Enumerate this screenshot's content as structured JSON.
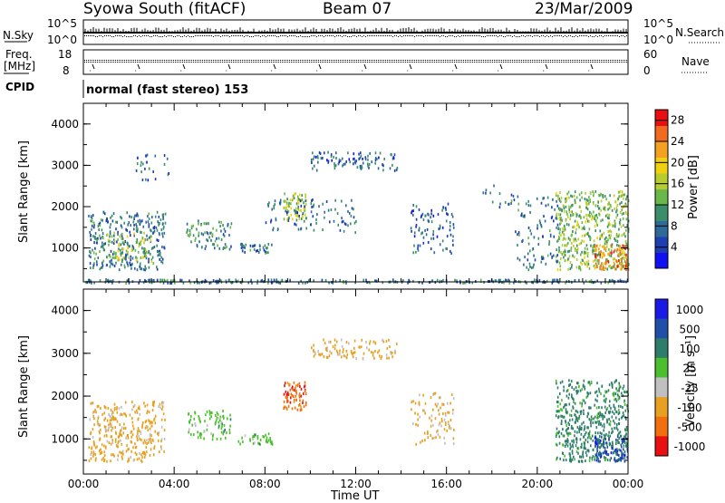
{
  "header": {
    "station": "Syowa South (fitACF)",
    "beam": "Beam 07",
    "date": "23/Mar/2009"
  },
  "strips": {
    "nsky_label": "N.Sky",
    "nsky_ticks": [
      "10^5",
      "10^0"
    ],
    "nsearch_label": "N.Search",
    "nsearch_ticks": [
      "10^5",
      "10^0"
    ],
    "freq_label": [
      "Freq.",
      "[MHz]"
    ],
    "freq_ticks": [
      "18",
      "8"
    ],
    "nave_label": "Nave",
    "nave_ticks": [
      "60",
      "0"
    ],
    "cpid_label": "CPID",
    "cpid_value": "normal (fast stereo) 153"
  },
  "time_axis": {
    "label": "Time UT",
    "ticks": [
      "00:00",
      "04:00",
      "08:00",
      "12:00",
      "16:00",
      "20:00",
      "00:00"
    ]
  },
  "chart_data": [
    {
      "type": "heatmap",
      "panel": "power",
      "ylabel": "Slant Range [km]",
      "xlabel": "Time UT",
      "xlim": [
        0,
        24
      ],
      "ylim": [
        180,
        4500
      ],
      "yticks": [
        1000,
        2000,
        3000,
        4000
      ],
      "colorbar": {
        "label": "Power [dB]",
        "ticks": [
          4,
          8,
          12,
          16,
          20,
          24,
          28
        ],
        "range": [
          0,
          30
        ],
        "colors": [
          "#1010f0",
          "#1d3fb0",
          "#2d6a9a",
          "#3a8f6a",
          "#6ab84a",
          "#b8cc30",
          "#f0d010",
          "#f5a020",
          "#f06a20",
          "#e81010"
        ]
      },
      "echo_regions": [
        {
          "t": [
            0.2,
            3.6
          ],
          "r": [
            500,
            1900
          ],
          "value": 8,
          "density": 0.35
        },
        {
          "t": [
            1.0,
            3.0
          ],
          "r": [
            700,
            1400
          ],
          "value": 16,
          "density": 0.25
        },
        {
          "t": [
            2.3,
            3.8
          ],
          "r": [
            2600,
            3300
          ],
          "value": 7,
          "density": 0.12
        },
        {
          "t": [
            4.5,
            6.5
          ],
          "r": [
            1000,
            1700
          ],
          "value": 10,
          "density": 0.3
        },
        {
          "t": [
            6.8,
            8.3
          ],
          "r": [
            900,
            1150
          ],
          "value": 8,
          "density": 0.5
        },
        {
          "t": [
            8.8,
            9.8
          ],
          "r": [
            1700,
            2350
          ],
          "value": 16,
          "density": 0.6
        },
        {
          "t": [
            8.0,
            12.0
          ],
          "r": [
            1400,
            2200
          ],
          "value": 7,
          "density": 0.15
        },
        {
          "t": [
            10.0,
            13.8
          ],
          "r": [
            2900,
            3350
          ],
          "value": 7,
          "density": 0.3
        },
        {
          "t": [
            14.4,
            16.3
          ],
          "r": [
            900,
            2100
          ],
          "value": 7,
          "density": 0.2
        },
        {
          "t": [
            17.5,
            19.0
          ],
          "r": [
            2000,
            2600
          ],
          "value": 8,
          "density": 0.1
        },
        {
          "t": [
            19.0,
            21.0
          ],
          "r": [
            500,
            2300
          ],
          "value": 8,
          "density": 0.15
        },
        {
          "t": [
            20.8,
            24.0
          ],
          "r": [
            500,
            2400
          ],
          "value": 14,
          "density": 0.45
        },
        {
          "t": [
            22.5,
            24.0
          ],
          "r": [
            500,
            1100
          ],
          "value": 24,
          "density": 0.55
        },
        {
          "t": [
            0.0,
            24.0
          ],
          "r": [
            180,
            260
          ],
          "value": 8,
          "density": 0.8
        }
      ]
    },
    {
      "type": "heatmap",
      "panel": "velocity",
      "ylabel": "Slant Range [km]",
      "xlabel": "Time UT",
      "xlim": [
        0,
        24
      ],
      "ylim": [
        180,
        4500
      ],
      "yticks": [
        1000,
        2000,
        3000,
        4000
      ],
      "colorbar": {
        "label": "Velocity [m s⁻¹]",
        "ticks": [
          "1000",
          "500",
          "100",
          "25",
          "-25",
          "-100",
          "-500",
          "-1000"
        ],
        "colors": [
          "#1a1ae6",
          "#1f4fa8",
          "#2e7d6a",
          "#4cbf2e",
          "#c0c0c0",
          "#e8a020",
          "#f07010",
          "#e81010"
        ]
      },
      "echo_regions": [
        {
          "t": [
            0.2,
            3.6
          ],
          "r": [
            500,
            1900
          ],
          "value": -100,
          "density": 0.35
        },
        {
          "t": [
            4.5,
            6.5
          ],
          "r": [
            1000,
            1700
          ],
          "value": 25,
          "density": 0.3
        },
        {
          "t": [
            6.8,
            8.3
          ],
          "r": [
            900,
            1150
          ],
          "value": 25,
          "density": 0.5
        },
        {
          "t": [
            8.8,
            9.8
          ],
          "r": [
            1700,
            2350
          ],
          "value": -500,
          "density": 0.6
        },
        {
          "t": [
            10.0,
            13.8
          ],
          "r": [
            2900,
            3350
          ],
          "value": -100,
          "density": 0.3
        },
        {
          "t": [
            14.4,
            16.3
          ],
          "r": [
            900,
            2100
          ],
          "value": -100,
          "density": 0.2
        },
        {
          "t": [
            20.8,
            24.0
          ],
          "r": [
            500,
            2400
          ],
          "value": 100,
          "density": 0.45
        },
        {
          "t": [
            22.5,
            24.0
          ],
          "r": [
            500,
            1100
          ],
          "value": 500,
          "density": 0.5
        }
      ]
    }
  ]
}
